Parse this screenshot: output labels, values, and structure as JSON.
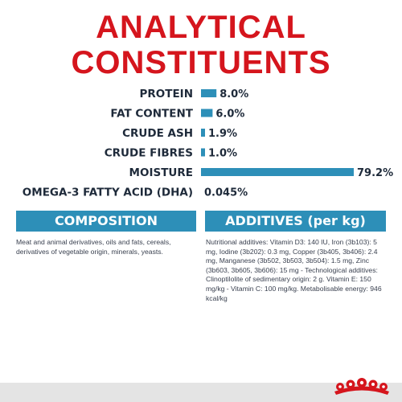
{
  "title_line1": "ANALYTICAL",
  "title_line2": "CONSTITUENTS",
  "chart_data": {
    "type": "bar",
    "orientation": "horizontal",
    "categories": [
      "PROTEIN",
      "FAT CONTENT",
      "CRUDE ASH",
      "CRUDE FIBRES",
      "MOISTURE",
      "OMEGA-3 FATTY ACID (DHA)"
    ],
    "values": [
      8.0,
      6.0,
      1.9,
      1.0,
      79.2,
      0.045
    ],
    "value_labels": [
      "8.0%",
      "6.0%",
      "1.9%",
      "1.0%",
      "79.2%",
      "0.045%"
    ],
    "xlim": [
      0,
      79.2
    ],
    "bar_color": "#2d8fb8",
    "grid": false,
    "legend": "none"
  },
  "composition": {
    "heading": "COMPOSITION",
    "text": "Meat and animal derivatives, oils and fats, cereals, derivatives of vegetable origin, minerals, yeasts."
  },
  "additives": {
    "heading": "ADDITIVES (per kg)",
    "text": "Nutritional additives: Vitamin D3: 140 IU, Iron (3b103): 5 mg, Iodine (3b202): 0.3 mg, Copper (3b405, 3b406): 2.4 mg, Manganese (3b502, 3b503, 3b504): 1.5 mg, Zinc (3b603, 3b605, 3b606): 15 mg - Technological additives: Clinoptilolite of sedimentary origin: 2 g. Vitamin E: 150 mg/kg - Vitamin C: 100 mg/kg. Metabolisable energy: 946 kcal/kg"
  },
  "colors": {
    "title": "#d5151d",
    "accent_blue": "#2d8fb8",
    "crown_red": "#d5151d"
  },
  "logo_icon": "royal-canin-crown-icon"
}
